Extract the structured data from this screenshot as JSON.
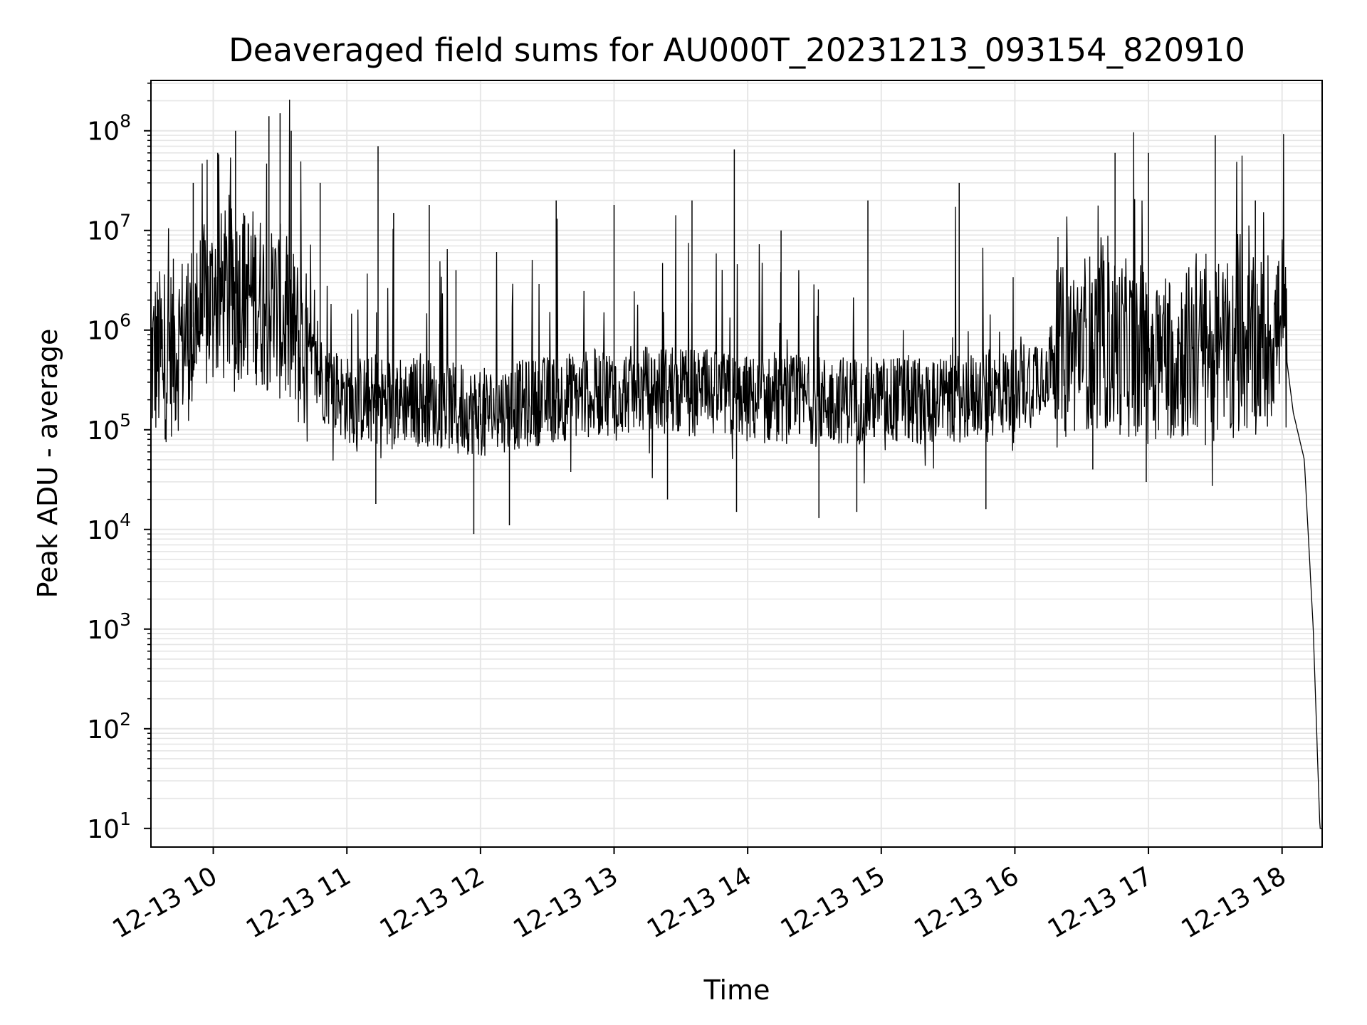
{
  "chart_data": {
    "type": "line",
    "title": "Deaveraged field sums for AU000T_20231213_093154_820910",
    "xlabel": "Time",
    "ylabel": "Peak ADU - average",
    "y_scale": "log",
    "ylim": [
      6.5,
      320000000
    ],
    "xlim": [
      "2023-12-13 09:32",
      "2023-12-13 18:18"
    ],
    "x_ticks": [
      {
        "value": "2023-12-13 10:00",
        "label": "12-13 10"
      },
      {
        "value": "2023-12-13 11:00",
        "label": "12-13 11"
      },
      {
        "value": "2023-12-13 12:00",
        "label": "12-13 12"
      },
      {
        "value": "2023-12-13 13:00",
        "label": "12-13 13"
      },
      {
        "value": "2023-12-13 14:00",
        "label": "12-13 14"
      },
      {
        "value": "2023-12-13 15:00",
        "label": "12-13 15"
      },
      {
        "value": "2023-12-13 16:00",
        "label": "12-13 16"
      },
      {
        "value": "2023-12-13 17:00",
        "label": "12-13 17"
      },
      {
        "value": "2023-12-13 18:00",
        "label": "12-13 18"
      }
    ],
    "y_ticks": [
      {
        "value": 10,
        "base": "10",
        "exp": "1"
      },
      {
        "value": 100,
        "base": "10",
        "exp": "2"
      },
      {
        "value": 1000,
        "base": "10",
        "exp": "3"
      },
      {
        "value": 10000,
        "base": "10",
        "exp": "4"
      },
      {
        "value": 100000,
        "base": "10",
        "exp": "5"
      },
      {
        "value": 1000000,
        "base": "10",
        "exp": "6"
      },
      {
        "value": 10000000,
        "base": "10",
        "exp": "7"
      },
      {
        "value": 100000000,
        "base": "10",
        "exp": "8"
      }
    ],
    "grid": true,
    "legend": "none",
    "line_color": "#000000",
    "grid_color": "#e6e6e6",
    "series": [
      {
        "name": "",
        "x": [
          "2023-12-13 09:32",
          "2023-12-13 09:40",
          "2023-12-13 09:50",
          "2023-12-13 10:00",
          "2023-12-13 10:15",
          "2023-12-13 10:30",
          "2023-12-13 10:45",
          "2023-12-13 11:00",
          "2023-12-13 11:30",
          "2023-12-13 12:00",
          "2023-12-13 12:30",
          "2023-12-13 13:00",
          "2023-12-13 13:30",
          "2023-12-13 14:00",
          "2023-12-13 14:30",
          "2023-12-13 15:00",
          "2023-12-13 15:30",
          "2023-12-13 16:00",
          "2023-12-13 16:30",
          "2023-12-13 17:00",
          "2023-12-13 17:30",
          "2023-12-13 17:50",
          "2023-12-13 18:00",
          "2023-12-13 18:05",
          "2023-12-13 18:10",
          "2023-12-13 18:14",
          "2023-12-13 18:17"
        ],
        "y": [
          500000,
          600000,
          1000000,
          2000000,
          2500000,
          1500000,
          400000,
          200000,
          200000,
          150000,
          200000,
          250000,
          250000,
          200000,
          200000,
          200000,
          200000,
          250000,
          800000,
          600000,
          600000,
          700000,
          1200000,
          150000,
          50000,
          1000,
          10
        ]
      }
    ],
    "spikes": [
      {
        "x": "2023-12-13 09:51",
        "y": 30000000
      },
      {
        "x": "2023-12-13 10:02",
        "y": 60000000
      },
      {
        "x": "2023-12-13 10:10",
        "y": 100000000
      },
      {
        "x": "2023-12-13 10:25",
        "y": 140000000
      },
      {
        "x": "2023-12-13 10:30",
        "y": 150000000
      },
      {
        "x": "2023-12-13 10:35",
        "y": 100000000
      },
      {
        "x": "2023-12-13 10:48",
        "y": 30000000
      },
      {
        "x": "2023-12-13 11:14",
        "y": 70000000
      },
      {
        "x": "2023-12-13 11:21",
        "y": 15000000
      },
      {
        "x": "2023-12-13 11:37",
        "y": 18000000
      },
      {
        "x": "2023-12-13 11:49",
        "y": 4000000
      },
      {
        "x": "2023-12-13 12:34",
        "y": 20000000
      },
      {
        "x": "2023-12-13 13:00",
        "y": 18000000
      },
      {
        "x": "2023-12-13 13:35",
        "y": 20000000
      },
      {
        "x": "2023-12-13 13:54",
        "y": 65000000
      },
      {
        "x": "2023-12-13 14:15",
        "y": 10000000
      },
      {
        "x": "2023-12-13 14:54",
        "y": 20000000
      },
      {
        "x": "2023-12-13 15:35",
        "y": 30000000
      },
      {
        "x": "2023-12-13 16:45",
        "y": 60000000
      },
      {
        "x": "2023-12-13 17:00",
        "y": 60000000
      },
      {
        "x": "2023-12-13 17:30",
        "y": 90000000
      },
      {
        "x": "2023-12-13 17:48",
        "y": 20000000
      }
    ],
    "dips": [
      {
        "x": "2023-12-13 11:57",
        "y": 9000
      },
      {
        "x": "2023-12-13 12:13",
        "y": 11000
      },
      {
        "x": "2023-12-13 11:13",
        "y": 18000
      },
      {
        "x": "2023-12-13 13:24",
        "y": 20000
      },
      {
        "x": "2023-12-13 13:55",
        "y": 15000
      },
      {
        "x": "2023-12-13 14:32",
        "y": 13000
      },
      {
        "x": "2023-12-13 14:49",
        "y": 15000
      },
      {
        "x": "2023-12-13 15:47",
        "y": 16000
      },
      {
        "x": "2023-12-13 16:35",
        "y": 40000
      },
      {
        "x": "2023-12-13 16:59",
        "y": 30000
      }
    ]
  }
}
